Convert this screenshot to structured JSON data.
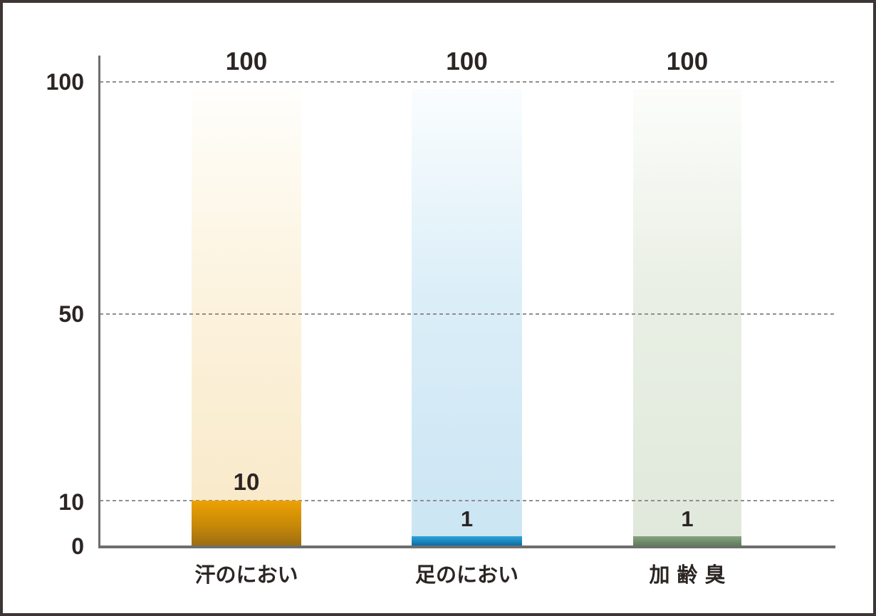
{
  "frame": {
    "background_color": "#FFFFFF",
    "border_color": "#3D3634"
  },
  "y_axis": {
    "line_color": "#6E6E6E",
    "ticks": [
      "100",
      "50",
      "10",
      "0"
    ]
  },
  "gridlines": {
    "style": "dashed",
    "color": "#8F8F8F",
    "at_values": [
      100,
      50,
      10
    ]
  },
  "chart_data": {
    "type": "bar",
    "title": "",
    "categories": [
      "汗のにおい",
      "足のにおい",
      "加齢臭"
    ],
    "series": [
      {
        "name": "scale-total-pale-bar",
        "values": [
          100,
          100,
          100
        ]
      },
      {
        "name": "highlight-solid-bar",
        "values": [
          10,
          1,
          1
        ]
      }
    ],
    "ylim": [
      0,
      100
    ],
    "yticks": [
      0,
      10,
      50,
      100
    ],
    "legend": "none",
    "grid": "horizontal dashed lines at 10, 50, 100",
    "text_color": "#2B2523",
    "bars": [
      {
        "category": "汗のにおい",
        "total": 100,
        "total_label": "100",
        "value": 10,
        "value_label": "10",
        "light_color": "#F8E8C6",
        "solid_color_top": "#EDA103",
        "solid_color_bottom": "#9C6E12"
      },
      {
        "category": "足のにおい",
        "total": 100,
        "total_label": "100",
        "value": 1,
        "value_label": "1",
        "light_color": "#CBE5F3",
        "solid_color_top": "#2FA3D8",
        "solid_color_bottom": "#0B6EA6"
      },
      {
        "category": "加齢臭",
        "total": 100,
        "total_label": "100",
        "value": 1,
        "value_label": "1",
        "light_color": "#E0E8DB",
        "solid_color_top": "#87A281",
        "solid_color_bottom": "#5F7D5A"
      }
    ]
  }
}
